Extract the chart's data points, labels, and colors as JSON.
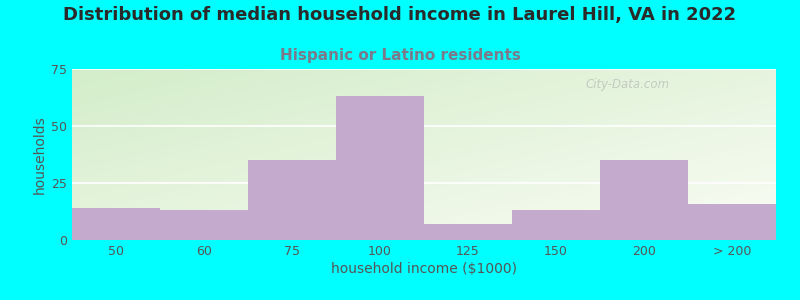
{
  "title": "Distribution of median household income in Laurel Hill, VA in 2022",
  "subtitle": "Hispanic or Latino residents",
  "xlabel": "household income ($1000)",
  "ylabel": "households",
  "background_outer": "#00FFFF",
  "bar_color": "#C4AACC",
  "subtitle_color": "#7a7a8a",
  "title_color": "#2a2a2a",
  "tick_color": "#555555",
  "categories": [
    "50",
    "60",
    "75",
    "100",
    "125",
    "150",
    "200",
    "> 200"
  ],
  "bin_edges": [
    0,
    1,
    2,
    3,
    4,
    5,
    6,
    7,
    8
  ],
  "values": [
    14,
    13,
    35,
    63,
    7,
    13,
    35,
    16
  ],
  "ylim": [
    0,
    75
  ],
  "yticks": [
    0,
    25,
    50,
    75
  ],
  "title_fontsize": 13,
  "subtitle_fontsize": 11,
  "axis_label_fontsize": 10,
  "tick_fontsize": 9,
  "watermark": "City-Data.com",
  "grad_left": "#d8edce",
  "grad_right": "#f5f5ee"
}
